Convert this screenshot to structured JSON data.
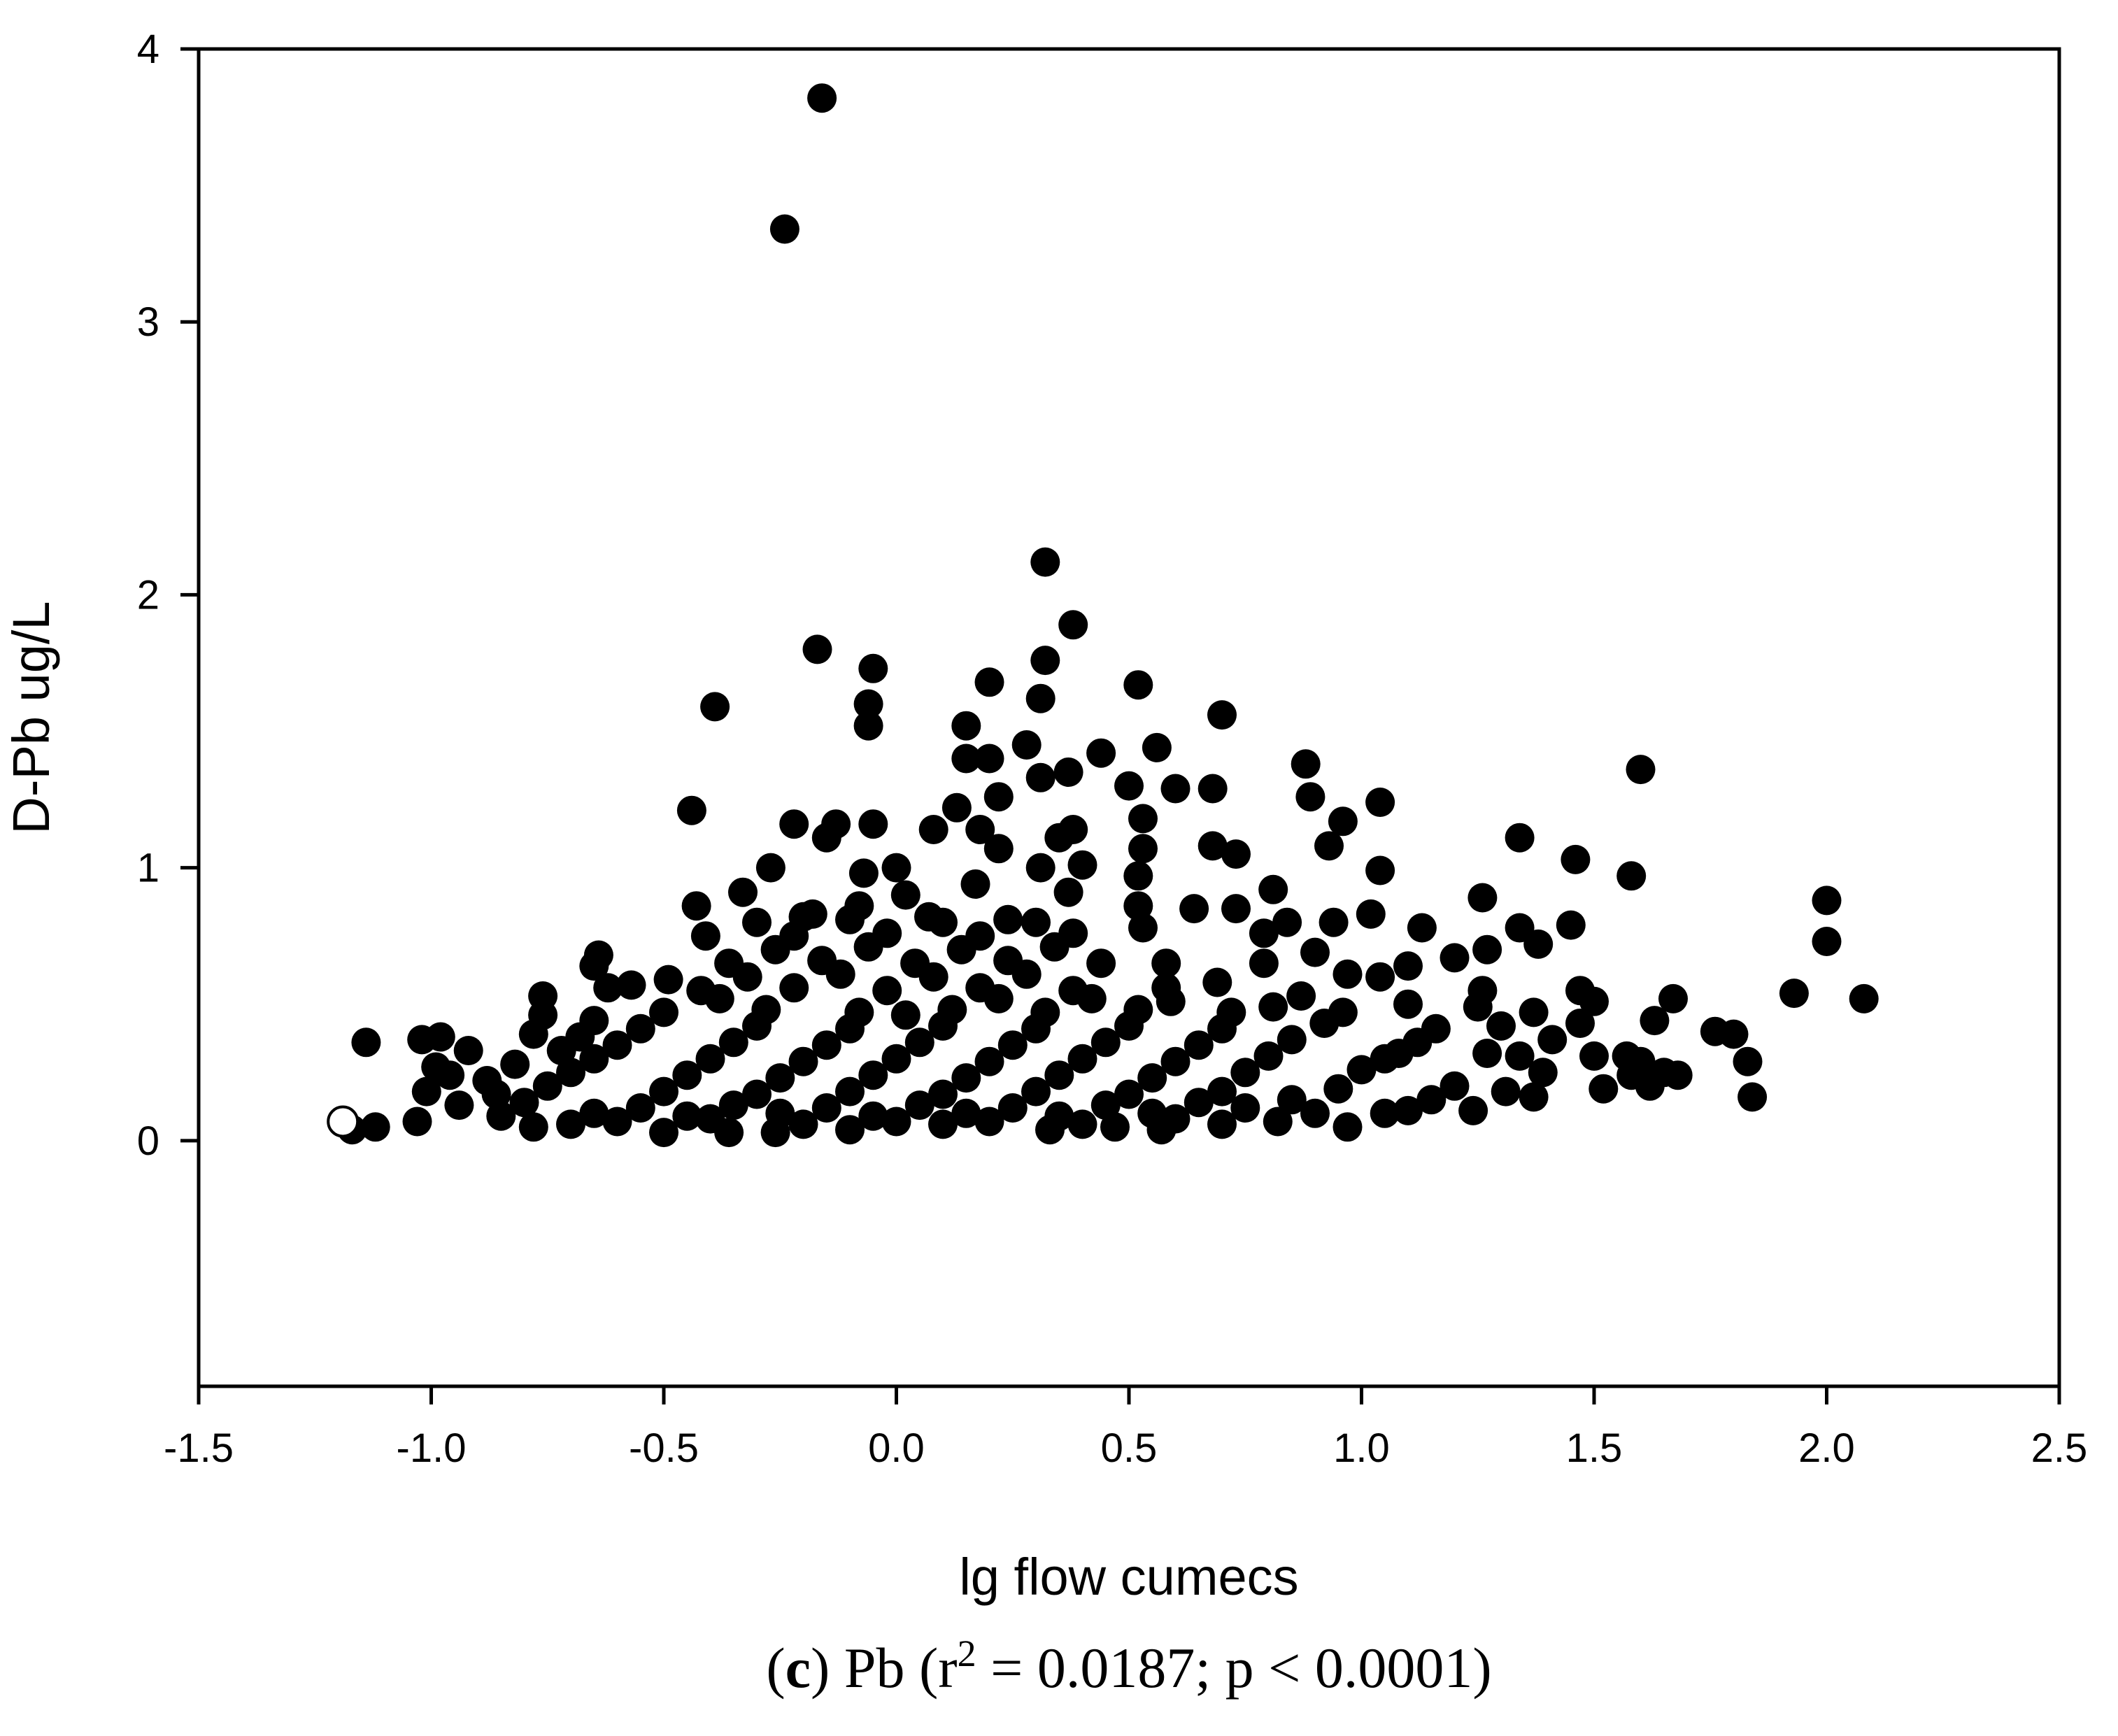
{
  "chart_data": {
    "type": "scatter",
    "xlabel": "lg flow cumecs",
    "ylabel": "D-Pb ug/L",
    "xlim": [
      -1.5,
      2.5
    ],
    "ylim": [
      -0.9,
      4.0
    ],
    "x_ticks": [
      "-1.5",
      "-1.0",
      "-0.5",
      "0.0",
      "0.5",
      "1.0",
      "1.5",
      "2.0",
      "2.5"
    ],
    "y_ticks": [
      "0",
      "1",
      "2",
      "3",
      "4"
    ],
    "x_tick_values": [
      -1.5,
      -1.0,
      -0.5,
      0.0,
      0.5,
      1.0,
      1.5,
      2.0,
      2.5
    ],
    "y_tick_values": [
      0,
      1,
      2,
      3,
      4
    ],
    "grid": false,
    "legend": "none",
    "caption": {
      "panel": "c",
      "open_paren": "(",
      "close_paren_and_element": ") Pb (r",
      "superscript": "2",
      "rest": " = 0.0187; p < 0.0001)"
    },
    "marker_color": "#000000",
    "series": [
      {
        "marker": "filled-circle",
        "points": [
          [
            -0.16,
            3.82
          ],
          [
            -0.24,
            3.34
          ],
          [
            0.32,
            2.12
          ],
          [
            0.38,
            1.89
          ],
          [
            -0.17,
            1.8
          ],
          [
            0.32,
            1.76
          ],
          [
            -0.05,
            1.73
          ],
          [
            0.2,
            1.68
          ],
          [
            0.52,
            1.67
          ],
          [
            -0.39,
            1.59
          ],
          [
            0.31,
            1.62
          ],
          [
            -0.06,
            1.6
          ],
          [
            0.7,
            1.56
          ],
          [
            -0.06,
            1.52
          ],
          [
            0.15,
            1.52
          ],
          [
            0.28,
            1.45
          ],
          [
            0.56,
            1.44
          ],
          [
            0.44,
            1.42
          ],
          [
            0.88,
            1.38
          ],
          [
            0.31,
            1.33
          ],
          [
            0.37,
            1.35
          ],
          [
            1.6,
            1.36
          ],
          [
            0.2,
            1.4
          ],
          [
            0.15,
            1.4
          ],
          [
            -0.44,
            1.21
          ],
          [
            0.6,
            1.29
          ],
          [
            0.68,
            1.29
          ],
          [
            0.5,
            1.3
          ],
          [
            0.89,
            1.26
          ],
          [
            0.22,
            1.26
          ],
          [
            1.04,
            1.24
          ],
          [
            0.13,
            1.22
          ],
          [
            0.53,
            1.18
          ],
          [
            0.96,
            1.17
          ],
          [
            -0.22,
            1.16
          ],
          [
            -0.13,
            1.16
          ],
          [
            -0.05,
            1.16
          ],
          [
            0.08,
            1.14
          ],
          [
            0.38,
            1.14
          ],
          [
            0.18,
            1.14
          ],
          [
            -0.15,
            1.11
          ],
          [
            0.35,
            1.11
          ],
          [
            0.68,
            1.08
          ],
          [
            0.93,
            1.08
          ],
          [
            0.53,
            1.07
          ],
          [
            0.22,
            1.07
          ],
          [
            1.34,
            1.11
          ],
          [
            0.73,
            1.05
          ],
          [
            1.46,
            1.03
          ],
          [
            0.4,
            1.01
          ],
          [
            0.0,
            1.0
          ],
          [
            -0.27,
            1.0
          ],
          [
            0.31,
            1.0
          ],
          [
            1.04,
            0.99
          ],
          [
            -0.07,
            0.98
          ],
          [
            1.58,
            0.97
          ],
          [
            0.52,
            0.97
          ],
          [
            0.17,
            0.94
          ],
          [
            0.81,
            0.92
          ],
          [
            -0.33,
            0.91
          ],
          [
            0.37,
            0.91
          ],
          [
            2.0,
            0.88
          ],
          [
            1.26,
            0.89
          ],
          [
            -0.43,
            0.86
          ],
          [
            0.52,
            0.86
          ],
          [
            0.64,
            0.85
          ],
          [
            0.73,
            0.85
          ],
          [
            1.02,
            0.83
          ],
          [
            -0.2,
            0.82
          ],
          [
            0.07,
            0.82
          ],
          [
            0.24,
            0.81
          ],
          [
            0.84,
            0.8
          ],
          [
            0.94,
            0.8
          ],
          [
            1.45,
            0.79
          ],
          [
            1.13,
            0.78
          ],
          [
            1.34,
            0.78
          ],
          [
            0.53,
            0.78
          ],
          [
            0.79,
            0.76
          ],
          [
            -0.41,
            0.75
          ],
          [
            1.38,
            0.72
          ],
          [
            2.0,
            0.73
          ],
          [
            1.27,
            0.7
          ],
          [
            0.9,
            0.69
          ],
          [
            -0.64,
            0.68
          ],
          [
            0.58,
            0.65
          ],
          [
            1.2,
            0.67
          ],
          [
            0.79,
            0.65
          ],
          [
            1.1,
            0.64
          ],
          [
            -0.65,
            0.64
          ],
          [
            0.97,
            0.61
          ],
          [
            1.04,
            0.6
          ],
          [
            0.69,
            0.58
          ],
          [
            -0.57,
            0.57
          ],
          [
            -0.49,
            0.59
          ],
          [
            -0.62,
            0.56
          ],
          [
            1.26,
            0.55
          ],
          [
            1.47,
            0.55
          ],
          [
            1.93,
            0.54
          ],
          [
            -0.76,
            0.53
          ],
          [
            0.87,
            0.53
          ],
          [
            1.67,
            0.52
          ],
          [
            2.08,
            0.52
          ],
          [
            1.5,
            0.51
          ],
          [
            0.59,
            0.51
          ],
          [
            1.1,
            0.5
          ],
          [
            0.81,
            0.49
          ],
          [
            1.25,
            0.49
          ],
          [
            1.37,
            0.47
          ],
          [
            0.96,
            0.47
          ],
          [
            -0.76,
            0.46
          ],
          [
            1.63,
            0.44
          ],
          [
            -0.65,
            0.44
          ],
          [
            1.47,
            0.43
          ],
          [
            1.3,
            0.42
          ],
          [
            1.16,
            0.41
          ],
          [
            1.76,
            0.4
          ],
          [
            1.8,
            0.39
          ],
          [
            -1.02,
            0.37
          ],
          [
            -0.78,
            0.39
          ],
          [
            -0.98,
            0.38
          ],
          [
            1.41,
            0.37
          ],
          [
            -1.14,
            0.36
          ],
          [
            -0.92,
            0.33
          ],
          [
            1.57,
            0.31
          ],
          [
            1.5,
            0.31
          ],
          [
            1.34,
            0.31
          ],
          [
            1.27,
            0.32
          ],
          [
            1.83,
            0.29
          ],
          [
            1.05,
            0.3
          ],
          [
            1.6,
            0.29
          ],
          [
            -0.99,
            0.27
          ],
          [
            1.65,
            0.25
          ],
          [
            1.58,
            0.24
          ],
          [
            1.68,
            0.24
          ],
          [
            1.39,
            0.25
          ],
          [
            -0.96,
            0.24
          ],
          [
            1.62,
            0.2
          ],
          [
            1.52,
            0.19
          ],
          [
            1.31,
            0.18
          ],
          [
            1.37,
            0.16
          ],
          [
            1.84,
            0.16
          ],
          [
            -1.01,
            0.18
          ],
          [
            -0.94,
            0.13
          ],
          [
            -0.86,
            0.17
          ],
          [
            1.24,
            0.11
          ],
          [
            -1.03,
            0.07
          ],
          [
            -1.12,
            0.05
          ],
          [
            -1.17,
            0.04
          ],
          [
            0.97,
            0.05
          ],
          [
            0.82,
            0.07
          ],
          [
            -0.5,
            0.03
          ],
          [
            -0.36,
            0.03
          ],
          [
            -0.26,
            0.03
          ],
          [
            -0.1,
            0.04
          ],
          [
            0.1,
            0.06
          ],
          [
            0.33,
            0.04
          ],
          [
            0.47,
            0.05
          ],
          [
            0.57,
            0.04
          ],
          [
            0.7,
            0.06
          ],
          [
            -0.78,
            0.05
          ],
          [
            -0.7,
            0.06
          ],
          [
            -0.6,
            0.07
          ],
          [
            -0.4,
            0.08
          ],
          [
            -0.2,
            0.06
          ],
          [
            0.0,
            0.07
          ],
          [
            0.2,
            0.07
          ],
          [
            0.4,
            0.06
          ],
          [
            0.6,
            0.08
          ],
          [
            0.9,
            0.1
          ],
          [
            1.05,
            0.1
          ],
          [
            -0.85,
            0.09
          ],
          [
            -0.65,
            0.1
          ],
          [
            -0.45,
            0.09
          ],
          [
            -0.25,
            0.1
          ],
          [
            -0.05,
            0.09
          ],
          [
            0.15,
            0.1
          ],
          [
            0.35,
            0.09
          ],
          [
            0.55,
            0.1
          ],
          [
            0.75,
            0.12
          ],
          [
            1.1,
            0.11
          ],
          [
            -0.8,
            0.14
          ],
          [
            -0.55,
            0.12
          ],
          [
            -0.35,
            0.13
          ],
          [
            -0.15,
            0.12
          ],
          [
            0.05,
            0.13
          ],
          [
            0.25,
            0.12
          ],
          [
            0.45,
            0.13
          ],
          [
            0.65,
            0.14
          ],
          [
            0.85,
            0.15
          ],
          [
            1.15,
            0.15
          ],
          [
            -0.75,
            0.2
          ],
          [
            -0.5,
            0.18
          ],
          [
            -0.3,
            0.17
          ],
          [
            -0.1,
            0.18
          ],
          [
            0.1,
            0.17
          ],
          [
            0.3,
            0.18
          ],
          [
            0.5,
            0.17
          ],
          [
            0.7,
            0.18
          ],
          [
            0.95,
            0.19
          ],
          [
            1.2,
            0.2
          ],
          [
            -0.7,
            0.25
          ],
          [
            -0.45,
            0.24
          ],
          [
            -0.25,
            0.23
          ],
          [
            -0.05,
            0.24
          ],
          [
            0.15,
            0.23
          ],
          [
            0.35,
            0.24
          ],
          [
            0.55,
            0.23
          ],
          [
            0.75,
            0.25
          ],
          [
            1.0,
            0.26
          ],
          [
            -0.88,
            0.22
          ],
          [
            -0.65,
            0.3
          ],
          [
            -0.4,
            0.3
          ],
          [
            -0.2,
            0.29
          ],
          [
            0.0,
            0.3
          ],
          [
            0.2,
            0.29
          ],
          [
            0.4,
            0.3
          ],
          [
            0.6,
            0.29
          ],
          [
            0.8,
            0.31
          ],
          [
            1.08,
            0.32
          ],
          [
            -0.82,
            0.28
          ],
          [
            -0.6,
            0.35
          ],
          [
            -0.35,
            0.36
          ],
          [
            -0.15,
            0.35
          ],
          [
            0.05,
            0.36
          ],
          [
            0.25,
            0.35
          ],
          [
            0.45,
            0.36
          ],
          [
            0.65,
            0.35
          ],
          [
            0.85,
            0.37
          ],
          [
            1.12,
            0.36
          ],
          [
            -0.72,
            0.33
          ],
          [
            -0.55,
            0.41
          ],
          [
            -0.3,
            0.42
          ],
          [
            -0.1,
            0.41
          ],
          [
            0.1,
            0.42
          ],
          [
            0.3,
            0.41
          ],
          [
            0.5,
            0.42
          ],
          [
            0.7,
            0.41
          ],
          [
            0.92,
            0.43
          ],
          [
            -0.68,
            0.38
          ],
          [
            0.02,
            0.46
          ],
          [
            -0.5,
            0.47
          ],
          [
            -0.28,
            0.48
          ],
          [
            -0.08,
            0.47
          ],
          [
            0.12,
            0.48
          ],
          [
            0.32,
            0.47
          ],
          [
            0.52,
            0.48
          ],
          [
            0.72,
            0.47
          ],
          [
            0.22,
            0.52
          ],
          [
            -0.38,
            0.52
          ],
          [
            0.42,
            0.52
          ],
          [
            -0.42,
            0.55
          ],
          [
            -0.22,
            0.56
          ],
          [
            -0.02,
            0.55
          ],
          [
            0.18,
            0.56
          ],
          [
            0.38,
            0.55
          ],
          [
            0.58,
            0.56
          ],
          [
            -0.32,
            0.6
          ],
          [
            -0.12,
            0.61
          ],
          [
            0.08,
            0.6
          ],
          [
            0.28,
            0.61
          ],
          [
            -0.36,
            0.65
          ],
          [
            -0.16,
            0.66
          ],
          [
            0.04,
            0.65
          ],
          [
            0.24,
            0.66
          ],
          [
            0.44,
            0.65
          ],
          [
            -0.26,
            0.7
          ],
          [
            -0.06,
            0.71
          ],
          [
            0.14,
            0.7
          ],
          [
            0.34,
            0.71
          ],
          [
            -0.22,
            0.75
          ],
          [
            -0.02,
            0.76
          ],
          [
            0.18,
            0.75
          ],
          [
            0.38,
            0.76
          ],
          [
            -0.3,
            0.8
          ],
          [
            -0.1,
            0.81
          ],
          [
            0.1,
            0.8
          ],
          [
            0.3,
            0.8
          ],
          [
            -0.08,
            0.86
          ],
          [
            0.02,
            0.9
          ],
          [
            -0.18,
            0.83
          ]
        ]
      },
      {
        "marker": "open-circle",
        "points": [
          [
            -1.19,
            0.07
          ]
        ]
      }
    ]
  }
}
